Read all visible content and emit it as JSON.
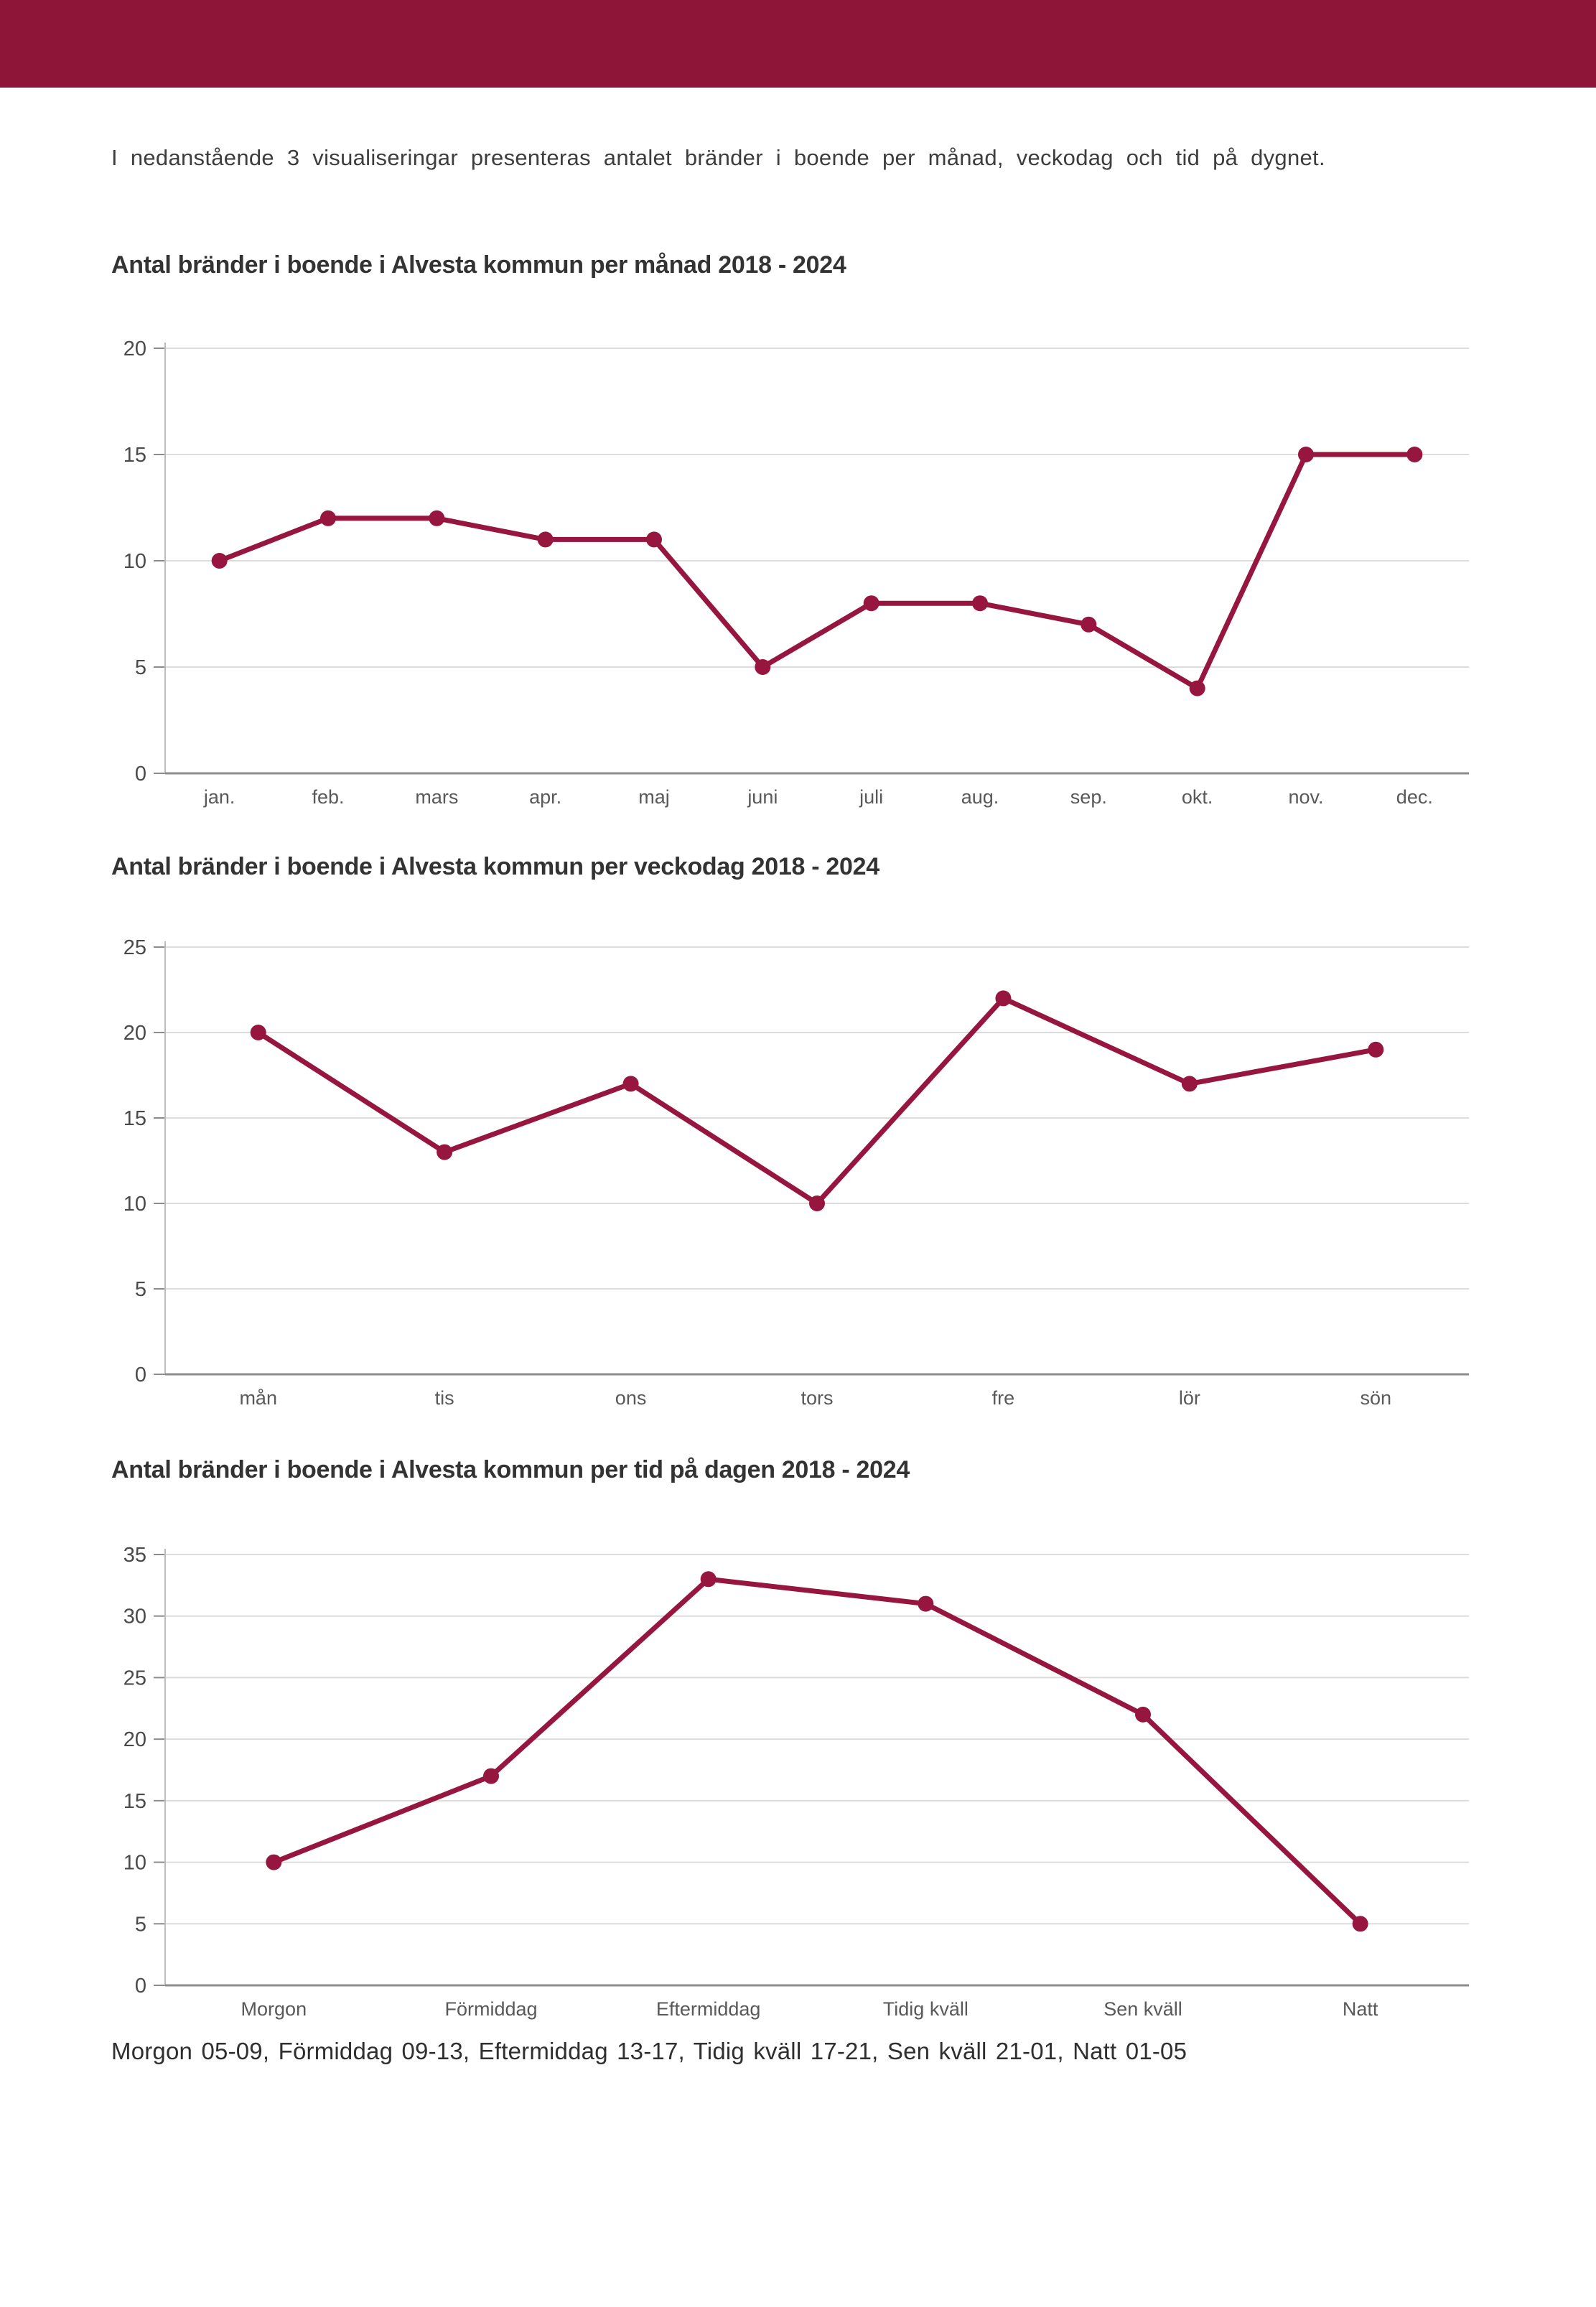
{
  "page": {
    "background_color": "#ffffff",
    "header_bar_color": "#8e1537",
    "accent_color": "#97163f",
    "gridline_color": "#dcdcdc",
    "axis_color": "#8c8c8c"
  },
  "intro": {
    "text": "I nedanstående 3 visualiseringar presenteras antalet bränder i boende per månad, veckodag och tid på dygnet."
  },
  "chart_data": [
    {
      "type": "line",
      "title": "Antal bränder i boende i Alvesta kommun per månad 2018 - 2024",
      "categories": [
        "jan.",
        "feb.",
        "mars",
        "apr.",
        "maj",
        "juni",
        "juli",
        "aug.",
        "sep.",
        "okt.",
        "nov.",
        "dec."
      ],
      "values": [
        10,
        12,
        12,
        11,
        11,
        5,
        8,
        8,
        7,
        4,
        15,
        15
      ],
      "xlabel": "",
      "ylabel": "",
      "ylim": [
        0,
        20
      ],
      "yticks": [
        0,
        5,
        10,
        15,
        20
      ],
      "grid": true,
      "legend": "none",
      "line_color": "#97163f",
      "marker": "circle"
    },
    {
      "type": "line",
      "title": "Antal bränder i boende i Alvesta kommun per veckodag 2018 - 2024",
      "categories": [
        "mån",
        "tis",
        "ons",
        "tors",
        "fre",
        "lör",
        "sön"
      ],
      "values": [
        20,
        13,
        17,
        10,
        22,
        17,
        19
      ],
      "xlabel": "",
      "ylabel": "",
      "ylim": [
        0,
        25
      ],
      "yticks": [
        0,
        5,
        10,
        15,
        20,
        25
      ],
      "grid": true,
      "legend": "none",
      "line_color": "#97163f",
      "marker": "circle"
    },
    {
      "type": "line",
      "title": "Antal bränder i boende i Alvesta kommun per tid på dagen 2018 - 2024",
      "categories": [
        "Morgon",
        "Förmiddag",
        "Eftermiddag",
        "Tidig kväll",
        "Sen kväll",
        "Natt"
      ],
      "values": [
        10,
        17,
        33,
        31,
        22,
        5
      ],
      "xlabel": "",
      "ylabel": "",
      "ylim": [
        0,
        35
      ],
      "yticks": [
        0,
        5,
        10,
        15,
        20,
        25,
        30,
        35
      ],
      "grid": true,
      "legend": "none",
      "line_color": "#97163f",
      "marker": "circle"
    }
  ],
  "footnote": {
    "text": "Morgon 05-09, Förmiddag 09-13, Eftermiddag 13-17, Tidig kväll 17-21, Sen kväll 21-01, Natt 01-05"
  }
}
